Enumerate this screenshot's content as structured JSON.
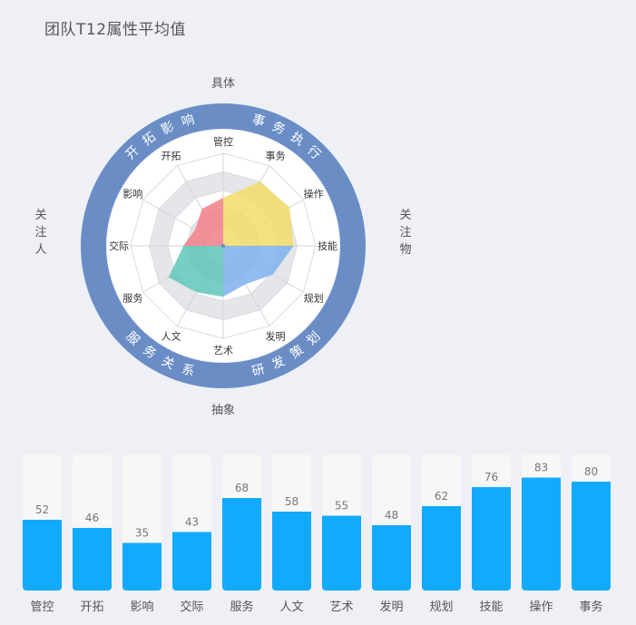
{
  "title": "团队T12属性平均值",
  "chart_data": [
    {
      "type": "radar",
      "axis_labels": {
        "top": "具体",
        "bottom": "抽象",
        "left": "关注人",
        "right": "关注物"
      },
      "ring_labels": {
        "top_left": "开拓影响",
        "top_right": "事务执行",
        "bottom_left": "服务关系",
        "bottom_right": "研发策划"
      },
      "categories": [
        "管控",
        "事务",
        "操作",
        "技能",
        "规划",
        "发明",
        "艺术",
        "人文",
        "服务",
        "交际",
        "影响",
        "开拓"
      ],
      "quadrants": [
        {
          "name": "事务执行",
          "color": "#f2dc6a",
          "values": [
            52,
            80,
            83,
            76
          ]
        },
        {
          "name": "研发策划",
          "color": "#7fb0ee",
          "values": [
            76,
            62,
            48,
            55
          ]
        },
        {
          "name": "服务关系",
          "color": "#5fc6b8",
          "values": [
            55,
            58,
            68,
            43
          ]
        },
        {
          "name": "开拓影响",
          "color": "#f27f8a",
          "values": [
            43,
            35,
            46,
            52
          ]
        }
      ],
      "rlim": [
        0,
        100
      ]
    },
    {
      "type": "bar",
      "categories": [
        "管控",
        "开拓",
        "影响",
        "交际",
        "服务",
        "人文",
        "艺术",
        "发明",
        "规划",
        "技能",
        "操作",
        "事务"
      ],
      "values": [
        52,
        46,
        35,
        43,
        68,
        58,
        55,
        48,
        62,
        76,
        83,
        80
      ],
      "ylim": [
        0,
        100
      ],
      "bar_color": "#12aafc",
      "track_color": "#f7f7f8"
    }
  ]
}
